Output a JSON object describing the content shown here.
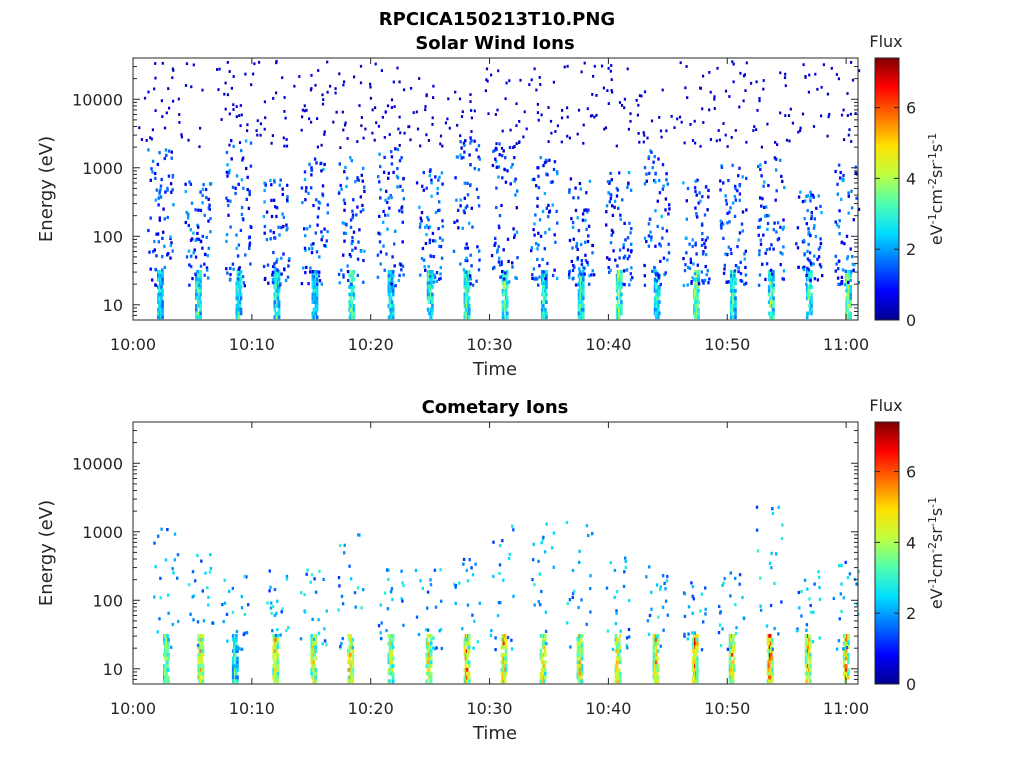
{
  "figure_title": "RPCICA150213T10.PNG",
  "colorscale": [
    "#00008f",
    "#0000ff",
    "#0070ff",
    "#00dfff",
    "#50ffaf",
    "#bfff40",
    "#ffe000",
    "#ff7000",
    "#ff0000",
    "#800000"
  ],
  "chart_data": [
    {
      "type": "heatmap",
      "title": "Solar Wind Ions",
      "xlabel": "Time",
      "ylabel": "Energy (eV)",
      "x_ticks": [
        "10:00",
        "10:10",
        "10:20",
        "10:30",
        "10:40",
        "10:50",
        "11:00"
      ],
      "x_range": [
        "10:00",
        "11:01"
      ],
      "y_scale": "log",
      "y_ticks": [
        "10",
        "100",
        "1000",
        "10000"
      ],
      "y_range": [
        6,
        40000
      ],
      "colorbar": {
        "label_top": "Flux",
        "unit": "eV-1cm-2sr-1s-1",
        "ticks": [
          "0",
          "2",
          "4",
          "6"
        ],
        "range": [
          0,
          7.4
        ]
      },
      "burst_minutes": [
        2.2,
        5.4,
        8.8,
        12.0,
        15.2,
        18.3,
        21.6,
        24.9,
        28.0,
        31.2,
        34.5,
        37.6,
        40.8,
        44.0,
        47.3,
        50.4,
        53.6,
        56.8,
        60.1
      ],
      "burst_peak_flux": [
        3.5,
        4.2,
        3.8,
        4.0,
        3.6,
        4.4,
        3.7,
        4.1,
        4.3,
        4.6,
        3.9,
        4.0,
        4.5,
        3.8,
        4.7,
        3.9,
        4.6,
        4.2,
        4.8
      ],
      "burst_max_energy_eV": [
        2000,
        700,
        3000,
        800,
        1500,
        1500,
        2000,
        1000,
        3000,
        2500,
        1500,
        800,
        900,
        2000,
        700,
        1200,
        1500,
        500,
        1200
      ]
    },
    {
      "type": "heatmap",
      "title": "Cometary Ions",
      "xlabel": "Time",
      "ylabel": "Energy (eV)",
      "x_ticks": [
        "10:00",
        "10:10",
        "10:20",
        "10:30",
        "10:40",
        "10:50",
        "11:00"
      ],
      "x_range": [
        "10:00",
        "11:01"
      ],
      "y_scale": "log",
      "y_ticks": [
        "10",
        "100",
        "1000",
        "10000"
      ],
      "y_range": [
        6,
        40000
      ],
      "colorbar": {
        "label_top": "Flux",
        "unit": "eV-1cm-2sr-1s-1",
        "ticks": [
          "0",
          "2",
          "4",
          "6"
        ],
        "range": [
          0,
          7.4
        ]
      },
      "burst_minutes": [
        2.7,
        5.6,
        8.5,
        11.9,
        15.1,
        18.2,
        21.6,
        24.8,
        28.0,
        31.1,
        34.4,
        37.5,
        40.7,
        43.9,
        47.2,
        50.3,
        53.5,
        56.7,
        59.9
      ],
      "burst_peak_flux": [
        4.8,
        6.0,
        3.8,
        6.2,
        5.9,
        6.3,
        5.6,
        5.9,
        6.7,
        6.4,
        6.0,
        5.8,
        6.2,
        6.1,
        7.0,
        6.3,
        7.1,
        6.5,
        6.8
      ],
      "burst_max_energy_eV": [
        1200,
        500,
        250,
        300,
        300,
        1200,
        300,
        300,
        500,
        1300,
        1500,
        1700,
        700,
        350,
        250,
        300,
        2500,
        300,
        400
      ]
    }
  ]
}
